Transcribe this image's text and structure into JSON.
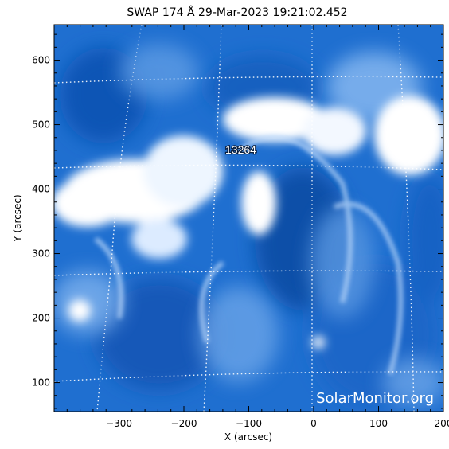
{
  "title": "SWAP 174 Å 29-Mar-2023 19:21:02.452",
  "region_label": "13264",
  "watermark": "SolarMonitor.org",
  "x_axis": {
    "label": "X (arcsec)",
    "range": [
      -400,
      200
    ],
    "ticks": [
      "−300",
      "−200",
      "−100",
      "0",
      "100",
      "200"
    ],
    "tick_values": [
      -300,
      -200,
      -100,
      0,
      100,
      200
    ]
  },
  "y_axis": {
    "label": "Y (arcsec)",
    "range": [
      55,
      655
    ],
    "ticks": [
      "100",
      "200",
      "300",
      "400",
      "500",
      "600"
    ],
    "tick_values": [
      100,
      200,
      300,
      400,
      500,
      600
    ]
  },
  "colors": {
    "background": "#ffffff",
    "solar_base": "#1f6fd0",
    "solar_dark": "#0e4fa8",
    "solar_bright": "#ffffff",
    "grid": "#ffffff"
  }
}
